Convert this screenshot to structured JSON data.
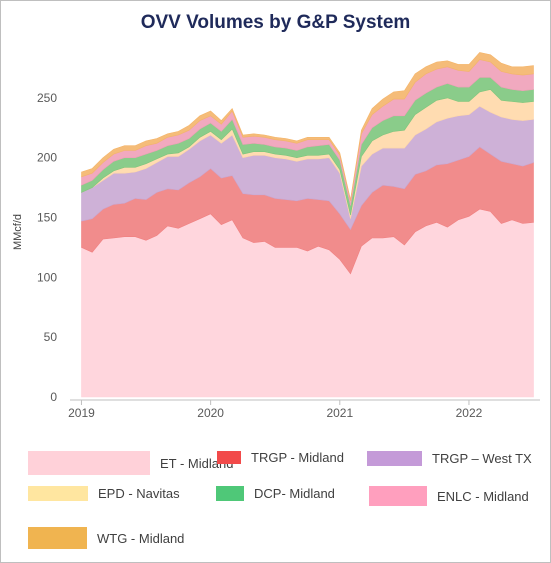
{
  "chart_data": {
    "type": "area",
    "stacked": true,
    "title": "OVV Volumes by G&P System",
    "ylabel": "MMcf/d",
    "xlabel": "",
    "ylim": [
      0,
      290
    ],
    "yticks": [
      0,
      50,
      100,
      150,
      200,
      250
    ],
    "xlim": [
      2018.95,
      2022.55
    ],
    "xticks": [
      {
        "value": 2019,
        "label": "2019"
      },
      {
        "value": 2020,
        "label": "2020"
      },
      {
        "value": 2021,
        "label": "2021"
      },
      {
        "value": 2022,
        "label": "2022"
      }
    ],
    "grid": false,
    "legend_position": "bottom",
    "x": [
      2019.0,
      2019.083,
      2019.167,
      2019.25,
      2019.333,
      2019.417,
      2019.5,
      2019.583,
      2019.667,
      2019.75,
      2019.833,
      2019.917,
      2020.0,
      2020.083,
      2020.167,
      2020.25,
      2020.333,
      2020.417,
      2020.5,
      2020.583,
      2020.667,
      2020.75,
      2020.833,
      2020.917,
      2021.0,
      2021.083,
      2021.167,
      2021.25,
      2021.333,
      2021.417,
      2021.5,
      2021.583,
      2021.667,
      2021.75,
      2021.833,
      2021.917,
      2022.0,
      2022.083,
      2022.167,
      2022.25,
      2022.333,
      2022.417,
      2022.5
    ],
    "series": [
      {
        "name": "ET - Midland",
        "color": "#ffd1d9",
        "values": [
          125,
          121,
          132,
          133,
          134,
          134,
          131,
          135,
          143,
          141,
          145,
          149,
          153,
          144,
          148,
          133,
          129,
          130,
          125,
          125,
          125,
          122,
          126,
          123,
          115,
          103,
          126,
          133,
          133,
          134,
          127,
          138,
          143,
          146,
          142,
          148,
          151,
          157,
          155,
          145,
          148,
          145,
          146
        ]
      },
      {
        "name": "TRGP - Midland",
        "color": "#f08080",
        "values": [
          22,
          28,
          25,
          28,
          28,
          32,
          34,
          36,
          31,
          32,
          34,
          35,
          38,
          39,
          37,
          37,
          40,
          39,
          41,
          40,
          39,
          44,
          39,
          41,
          38,
          37,
          34,
          38,
          44,
          42,
          47,
          48,
          46,
          48,
          53,
          50,
          50,
          52,
          48,
          52,
          47,
          48,
          50
        ]
      },
      {
        "name": "TRGP – West TX",
        "color": "#c9a9d3",
        "values": [
          24,
          26,
          24,
          26,
          25,
          22,
          26,
          25,
          27,
          28,
          28,
          30,
          28,
          29,
          34,
          30,
          33,
          33,
          34,
          34,
          33,
          33,
          34,
          36,
          34,
          9,
          33,
          32,
          31,
          32,
          34,
          33,
          35,
          36,
          38,
          37,
          35,
          34,
          35,
          37,
          37,
          38,
          36
        ]
      },
      {
        "name": "EPD - Navitas",
        "color": "#ffd8a8",
        "values": [
          0,
          0,
          2,
          2,
          5,
          4,
          4,
          3,
          2,
          3,
          2,
          3,
          3,
          3,
          5,
          3,
          3,
          3,
          3,
          3,
          3,
          3,
          3,
          3,
          3,
          3,
          8,
          11,
          11,
          14,
          15,
          17,
          18,
          18,
          17,
          12,
          11,
          12,
          19,
          14,
          15,
          15,
          15
        ]
      },
      {
        "name": "DCP- Midland",
        "color": "#7dc67d",
        "values": [
          6,
          6,
          7,
          8,
          8,
          8,
          8,
          7,
          7,
          8,
          7,
          7,
          7,
          7,
          8,
          8,
          7,
          6,
          6,
          6,
          6,
          7,
          8,
          8,
          8,
          8,
          10,
          11,
          12,
          13,
          12,
          12,
          12,
          11,
          12,
          12,
          12,
          12,
          10,
          11,
          10,
          10,
          10
        ]
      },
      {
        "name": "ENLC - Midland",
        "color": "#f0a0b8",
        "values": [
          7,
          6,
          6,
          6,
          6,
          6,
          7,
          6,
          7,
          7,
          7,
          7,
          6,
          6,
          7,
          6,
          6,
          6,
          6,
          6,
          6,
          6,
          5,
          4,
          4,
          4,
          9,
          11,
          12,
          14,
          14,
          15,
          16,
          15,
          14,
          14,
          13,
          15,
          13,
          13,
          13,
          13,
          13
        ]
      },
      {
        "name": "WTG - Midland",
        "color": "#f4b56a",
        "values": [
          4,
          4,
          4,
          4,
          4,
          4,
          4,
          4,
          3,
          3,
          4,
          4,
          4,
          3,
          2,
          2,
          2,
          2,
          2,
          2,
          2,
          2,
          2,
          2,
          2,
          1,
          3,
          5,
          6,
          6,
          7,
          7,
          6,
          6,
          5,
          5,
          6,
          6,
          6,
          7,
          6,
          7,
          7
        ]
      }
    ]
  },
  "legend": {
    "items": [
      {
        "label": "ET - Midland",
        "color": "#ffd1d9"
      },
      {
        "label": "TRGP - Midland",
        "color": "#f24a4a"
      },
      {
        "label": "TRGP – West TX",
        "color": "#c49ad8"
      },
      {
        "label": "EPD - Navitas",
        "color": "#ffe6a0"
      },
      {
        "label": "DCP- Midland",
        "color": "#4fc878"
      },
      {
        "label": "ENLC - Midland",
        "color": "#ff9fbe"
      },
      {
        "label": "WTG - Midland",
        "color": "#f0b450"
      }
    ]
  }
}
